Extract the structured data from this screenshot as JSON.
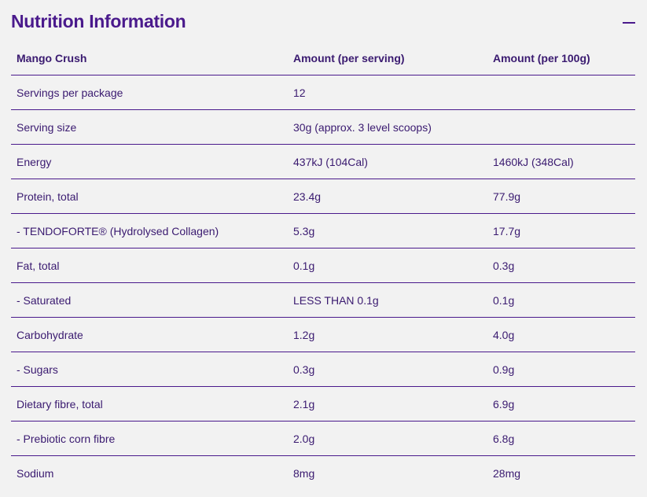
{
  "header": {
    "title": "Nutrition Information",
    "collapse_icon": "minus-icon"
  },
  "table": {
    "columns": [
      "Mango Crush",
      "Amount (per serving)",
      "Amount (per 100g)"
    ],
    "rows": [
      [
        "Servings per package",
        "12",
        ""
      ],
      [
        "Serving size",
        "30g (approx. 3 level scoops)",
        ""
      ],
      [
        "Energy",
        "437kJ (104Cal)",
        "1460kJ (348Cal)"
      ],
      [
        "Protein, total",
        "23.4g",
        "77.9g"
      ],
      [
        "- TENDOFORTE® (Hydrolysed Collagen)",
        "5.3g",
        "17.7g"
      ],
      [
        "Fat, total",
        "0.1g",
        "0.3g"
      ],
      [
        "- Saturated",
        "LESS THAN 0.1g",
        "0.1g"
      ],
      [
        "Carbohydrate",
        "1.2g",
        "4.0g"
      ],
      [
        "- Sugars",
        "0.3g",
        "0.9g"
      ],
      [
        "Dietary fibre, total",
        "2.1g",
        "6.9g"
      ],
      [
        "- Prebiotic corn fibre",
        "2.0g",
        "6.8g"
      ],
      [
        "Sodium",
        "8mg",
        "28mg"
      ]
    ]
  },
  "colors": {
    "accent": "#4a1a8c",
    "text": "#3a1a70",
    "background": "#f2f2f2"
  }
}
